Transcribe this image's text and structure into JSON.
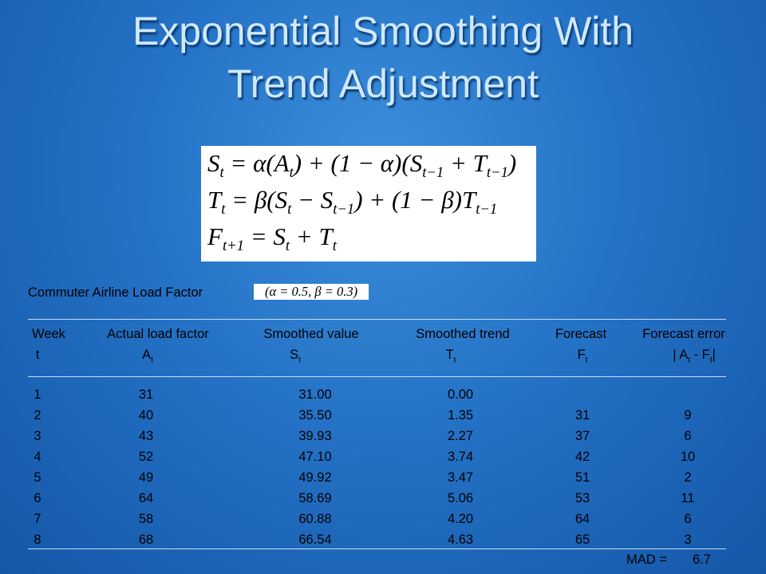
{
  "title": [
    "Exponential Smoothing With",
    "Trend Adjustment"
  ],
  "formulas": [
    [
      {
        "t": "S"
      },
      {
        "s": "t"
      },
      {
        "t": " = α(A"
      },
      {
        "s": "t"
      },
      {
        "t": ") + (1 − α)(S"
      },
      {
        "s": "t−1"
      },
      {
        "t": " + T"
      },
      {
        "s": "t−1"
      },
      {
        "t": ")"
      }
    ],
    [
      {
        "t": "T"
      },
      {
        "s": "t"
      },
      {
        "t": " = β(S"
      },
      {
        "s": "t"
      },
      {
        "t": " − S"
      },
      {
        "s": "t−1"
      },
      {
        "t": ") + (1 − β)T"
      },
      {
        "s": "t−1"
      }
    ],
    [
      {
        "t": "F"
      },
      {
        "s": "t+1"
      },
      {
        "t": " = S"
      },
      {
        "s": "t"
      },
      {
        "t": " + T"
      },
      {
        "s": "t"
      }
    ]
  ],
  "caption": "Commuter Airline Load Factor",
  "parameters": "(α = 0.5, β = 0.3)",
  "table": {
    "header": [
      "Week",
      "Actual load factor",
      "Smoothed value",
      "Smoothed trend",
      "Forecast",
      "Forecast error"
    ],
    "subheader": [
      [
        {
          "t": "t"
        }
      ],
      [
        {
          "t": "A"
        },
        {
          "s": "t"
        }
      ],
      [
        {
          "t": "S"
        },
        {
          "s": "t"
        }
      ],
      [
        {
          "t": "T"
        },
        {
          "s": "t"
        }
      ],
      [
        {
          "t": "F"
        },
        {
          "s": "t"
        }
      ],
      [
        {
          "t": "| A"
        },
        {
          "s": "t"
        },
        {
          "t": " - F"
        },
        {
          "s": "t"
        },
        {
          "t": "|"
        }
      ]
    ],
    "rows": [
      [
        "1",
        "31",
        "31.00",
        "0.00"
      ],
      [
        "2",
        "40",
        "35.50",
        "1.35",
        "31",
        "9"
      ],
      [
        "3",
        "43",
        "39.93",
        "2.27",
        "37",
        "6"
      ],
      [
        "4",
        "52",
        "47.10",
        "3.74",
        "42",
        "10"
      ],
      [
        "5",
        "49",
        "49.92",
        "3.47",
        "51",
        "2"
      ],
      [
        "6",
        "64",
        "58.69",
        "5.06",
        "53",
        "11"
      ],
      [
        "7",
        "58",
        "60.88",
        "4.20",
        "64",
        "6"
      ],
      [
        "8",
        "68",
        "66.54",
        "4.63",
        "65",
        "3"
      ]
    ],
    "mad_label": "MAD =",
    "mad_value": "6.7"
  }
}
